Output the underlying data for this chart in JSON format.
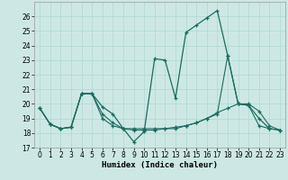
{
  "xlabel": "Humidex (Indice chaleur)",
  "ylabel": "",
  "bg_color": "#cde8e4",
  "grid_color": "#b0d8d4",
  "line_color": "#1a6b60",
  "xlim": [
    -0.5,
    23.5
  ],
  "ylim": [
    17,
    27
  ],
  "yticks": [
    17,
    18,
    19,
    20,
    21,
    22,
    23,
    24,
    25,
    26
  ],
  "xticks": [
    0,
    1,
    2,
    3,
    4,
    5,
    6,
    7,
    8,
    9,
    10,
    11,
    12,
    13,
    14,
    15,
    16,
    17,
    18,
    19,
    20,
    21,
    22,
    23
  ],
  "series1_x": [
    0,
    1,
    2,
    3,
    4,
    5,
    6,
    7,
    8,
    9,
    10,
    11,
    12,
    13,
    14,
    15,
    16,
    17,
    18,
    19,
    20,
    21,
    22,
    23
  ],
  "series1_y": [
    19.7,
    18.6,
    18.3,
    18.4,
    20.7,
    20.7,
    19.8,
    19.3,
    18.3,
    17.4,
    18.1,
    23.1,
    23.0,
    20.4,
    24.9,
    25.4,
    25.9,
    26.4,
    23.3,
    20.0,
    19.9,
    19.0,
    18.3,
    18.2
  ],
  "series2_x": [
    0,
    1,
    2,
    3,
    4,
    5,
    6,
    7,
    8,
    9,
    10,
    11,
    12,
    13,
    14,
    15,
    16,
    17,
    18,
    19,
    20,
    21,
    22,
    23
  ],
  "series2_y": [
    19.7,
    18.6,
    18.3,
    18.4,
    20.7,
    20.7,
    19.0,
    18.5,
    18.3,
    18.2,
    18.2,
    18.2,
    18.3,
    18.4,
    18.5,
    18.7,
    19.0,
    19.4,
    19.7,
    20.0,
    20.0,
    19.5,
    18.5,
    18.2
  ],
  "series3_x": [
    0,
    1,
    2,
    3,
    4,
    5,
    6,
    7,
    8,
    9,
    10,
    11,
    12,
    13,
    14,
    15,
    16,
    17,
    18,
    19,
    20,
    21,
    22,
    23
  ],
  "series3_y": [
    19.7,
    18.6,
    18.3,
    18.4,
    20.7,
    20.7,
    19.3,
    18.7,
    18.3,
    18.3,
    18.3,
    18.3,
    18.3,
    18.3,
    18.5,
    18.7,
    19.0,
    19.3,
    23.3,
    20.0,
    19.9,
    18.5,
    18.3,
    18.2
  ],
  "marker_size": 3,
  "tick_fontsize": 5.5,
  "xlabel_fontsize": 6.5
}
